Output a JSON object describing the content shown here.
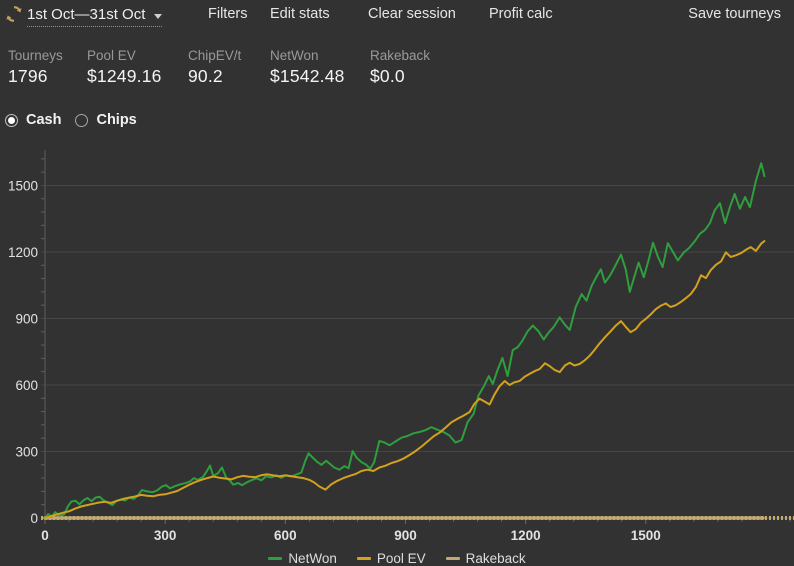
{
  "header": {
    "date_range": "1st Oct—31st Oct",
    "menu": [
      "Filters",
      "Edit stats",
      "Clear session",
      "Profit calc"
    ],
    "save_label": "Save tourneys",
    "refresh_icon": "refresh-circular-arrows",
    "accent_gold": "#c2a15a"
  },
  "stats": [
    {
      "label": "Tourneys",
      "value": "1796"
    },
    {
      "label": "Pool EV",
      "value": "$1249.16"
    },
    {
      "label": "ChipEV/t",
      "value": "90.2"
    },
    {
      "label": "NetWon",
      "value": "$1542.48"
    },
    {
      "label": "Rakeback",
      "value": "$0.0"
    }
  ],
  "mode_toggle": {
    "options": [
      {
        "label": "Cash",
        "selected": true
      },
      {
        "label": "Chips",
        "selected": false
      }
    ]
  },
  "colors": {
    "background": "#323232",
    "grid": "#464646",
    "axis": "#5f5f5f",
    "tick_text": "#e2e2e2",
    "netwon_green": "#2f9e3e",
    "poolev_gold": "#d4a11d",
    "rakeback_tan": "#c2a873"
  },
  "chart_data": {
    "type": "line",
    "title": "",
    "xlabel": "",
    "ylabel": "",
    "xlim": [
      0,
      1870
    ],
    "ylim": [
      0,
      1660
    ],
    "x_ticks": [
      0,
      300,
      600,
      900,
      1200,
      1500
    ],
    "y_ticks": [
      0,
      300,
      600,
      900,
      1200,
      1500
    ],
    "minor_tick_step": 60,
    "grid": "horizontal",
    "legend_position": "bottom",
    "series": [
      {
        "name": "NetWon",
        "color": "#2f9e3e",
        "width": 2,
        "points": [
          [
            0,
            0
          ],
          [
            8,
            18
          ],
          [
            16,
            6
          ],
          [
            26,
            26
          ],
          [
            36,
            10
          ],
          [
            48,
            16
          ],
          [
            58,
            55
          ],
          [
            66,
            74
          ],
          [
            76,
            78
          ],
          [
            86,
            62
          ],
          [
            96,
            80
          ],
          [
            106,
            90
          ],
          [
            116,
            76
          ],
          [
            126,
            92
          ],
          [
            136,
            96
          ],
          [
            146,
            80
          ],
          [
            156,
            70
          ],
          [
            168,
            58
          ],
          [
            178,
            76
          ],
          [
            190,
            83
          ],
          [
            200,
            79
          ],
          [
            210,
            92
          ],
          [
            222,
            86
          ],
          [
            232,
            102
          ],
          [
            242,
            126
          ],
          [
            255,
            120
          ],
          [
            268,
            116
          ],
          [
            280,
            124
          ],
          [
            292,
            142
          ],
          [
            302,
            148
          ],
          [
            312,
            134
          ],
          [
            325,
            144
          ],
          [
            338,
            152
          ],
          [
            350,
            157
          ],
          [
            362,
            165
          ],
          [
            372,
            180
          ],
          [
            382,
            172
          ],
          [
            395,
            186
          ],
          [
            405,
            214
          ],
          [
            412,
            237
          ],
          [
            420,
            190
          ],
          [
            432,
            202
          ],
          [
            442,
            228
          ],
          [
            452,
            184
          ],
          [
            462,
            168
          ],
          [
            470,
            150
          ],
          [
            482,
            158
          ],
          [
            492,
            148
          ],
          [
            505,
            162
          ],
          [
            515,
            170
          ],
          [
            528,
            180
          ],
          [
            540,
            170
          ],
          [
            552,
            188
          ],
          [
            565,
            183
          ],
          [
            578,
            192
          ],
          [
            590,
            181
          ],
          [
            602,
            193
          ],
          [
            615,
            187
          ],
          [
            628,
            196
          ],
          [
            640,
            205
          ],
          [
            650,
            258
          ],
          [
            658,
            292
          ],
          [
            668,
            273
          ],
          [
            680,
            252
          ],
          [
            690,
            240
          ],
          [
            702,
            258
          ],
          [
            712,
            243
          ],
          [
            722,
            228
          ],
          [
            735,
            218
          ],
          [
            748,
            234
          ],
          [
            758,
            224
          ],
          [
            768,
            302
          ],
          [
            778,
            272
          ],
          [
            790,
            252
          ],
          [
            802,
            240
          ],
          [
            812,
            222
          ],
          [
            822,
            252
          ],
          [
            835,
            348
          ],
          [
            848,
            340
          ],
          [
            860,
            328
          ],
          [
            875,
            345
          ],
          [
            890,
            362
          ],
          [
            905,
            370
          ],
          [
            920,
            382
          ],
          [
            935,
            388
          ],
          [
            950,
            396
          ],
          [
            965,
            410
          ],
          [
            980,
            398
          ],
          [
            995,
            388
          ],
          [
            1010,
            372
          ],
          [
            1025,
            340
          ],
          [
            1040,
            352
          ],
          [
            1055,
            432
          ],
          [
            1070,
            470
          ],
          [
            1082,
            552
          ],
          [
            1095,
            592
          ],
          [
            1108,
            640
          ],
          [
            1118,
            605
          ],
          [
            1130,
            668
          ],
          [
            1142,
            722
          ],
          [
            1155,
            640
          ],
          [
            1168,
            758
          ],
          [
            1180,
            770
          ],
          [
            1192,
            800
          ],
          [
            1205,
            842
          ],
          [
            1218,
            868
          ],
          [
            1232,
            842
          ],
          [
            1245,
            805
          ],
          [
            1258,
            838
          ],
          [
            1270,
            862
          ],
          [
            1285,
            905
          ],
          [
            1298,
            872
          ],
          [
            1310,
            848
          ],
          [
            1325,
            952
          ],
          [
            1340,
            1010
          ],
          [
            1352,
            980
          ],
          [
            1365,
            1048
          ],
          [
            1378,
            1092
          ],
          [
            1388,
            1122
          ],
          [
            1398,
            1062
          ],
          [
            1410,
            1092
          ],
          [
            1422,
            1132
          ],
          [
            1438,
            1188
          ],
          [
            1450,
            1120
          ],
          [
            1460,
            1020
          ],
          [
            1472,
            1092
          ],
          [
            1482,
            1152
          ],
          [
            1495,
            1086
          ],
          [
            1508,
            1170
          ],
          [
            1518,
            1242
          ],
          [
            1530,
            1180
          ],
          [
            1542,
            1132
          ],
          [
            1555,
            1240
          ],
          [
            1568,
            1200
          ],
          [
            1580,
            1162
          ],
          [
            1595,
            1198
          ],
          [
            1608,
            1218
          ],
          [
            1622,
            1248
          ],
          [
            1635,
            1282
          ],
          [
            1648,
            1300
          ],
          [
            1660,
            1330
          ],
          [
            1672,
            1388
          ],
          [
            1685,
            1420
          ],
          [
            1698,
            1330
          ],
          [
            1710,
            1402
          ],
          [
            1722,
            1462
          ],
          [
            1735,
            1395
          ],
          [
            1748,
            1448
          ],
          [
            1760,
            1402
          ],
          [
            1775,
            1520
          ],
          [
            1788,
            1600
          ],
          [
            1792,
            1572
          ],
          [
            1796,
            1542
          ]
        ]
      },
      {
        "name": "Pool EV",
        "color": "#d4a11d",
        "width": 2,
        "points": [
          [
            0,
            0
          ],
          [
            15,
            8
          ],
          [
            30,
            16
          ],
          [
            45,
            24
          ],
          [
            60,
            30
          ],
          [
            75,
            42
          ],
          [
            90,
            52
          ],
          [
            105,
            58
          ],
          [
            120,
            64
          ],
          [
            135,
            70
          ],
          [
            150,
            73
          ],
          [
            165,
            68
          ],
          [
            180,
            78
          ],
          [
            195,
            86
          ],
          [
            210,
            92
          ],
          [
            225,
            97
          ],
          [
            240,
            104
          ],
          [
            255,
            100
          ],
          [
            270,
            98
          ],
          [
            285,
            104
          ],
          [
            300,
            107
          ],
          [
            315,
            114
          ],
          [
            330,
            122
          ],
          [
            345,
            136
          ],
          [
            360,
            150
          ],
          [
            375,
            162
          ],
          [
            390,
            172
          ],
          [
            405,
            180
          ],
          [
            420,
            187
          ],
          [
            435,
            182
          ],
          [
            450,
            178
          ],
          [
            465,
            174
          ],
          [
            480,
            184
          ],
          [
            495,
            190
          ],
          [
            510,
            186
          ],
          [
            525,
            184
          ],
          [
            540,
            193
          ],
          [
            555,
            197
          ],
          [
            570,
            192
          ],
          [
            585,
            188
          ],
          [
            600,
            192
          ],
          [
            615,
            188
          ],
          [
            630,
            184
          ],
          [
            645,
            180
          ],
          [
            660,
            172
          ],
          [
            672,
            160
          ],
          [
            685,
            142
          ],
          [
            700,
            128
          ],
          [
            715,
            152
          ],
          [
            730,
            168
          ],
          [
            745,
            180
          ],
          [
            760,
            190
          ],
          [
            775,
            198
          ],
          [
            790,
            212
          ],
          [
            805,
            218
          ],
          [
            820,
            212
          ],
          [
            835,
            228
          ],
          [
            850,
            236
          ],
          [
            865,
            248
          ],
          [
            880,
            256
          ],
          [
            895,
            268
          ],
          [
            910,
            284
          ],
          [
            925,
            302
          ],
          [
            940,
            322
          ],
          [
            955,
            345
          ],
          [
            970,
            368
          ],
          [
            985,
            385
          ],
          [
            1000,
            408
          ],
          [
            1015,
            432
          ],
          [
            1030,
            448
          ],
          [
            1045,
            462
          ],
          [
            1060,
            478
          ],
          [
            1072,
            515
          ],
          [
            1085,
            538
          ],
          [
            1098,
            525
          ],
          [
            1110,
            512
          ],
          [
            1122,
            556
          ],
          [
            1135,
            595
          ],
          [
            1148,
            618
          ],
          [
            1160,
            600
          ],
          [
            1172,
            612
          ],
          [
            1185,
            618
          ],
          [
            1198,
            638
          ],
          [
            1210,
            650
          ],
          [
            1222,
            662
          ],
          [
            1235,
            672
          ],
          [
            1248,
            698
          ],
          [
            1260,
            685
          ],
          [
            1272,
            668
          ],
          [
            1285,
            658
          ],
          [
            1298,
            688
          ],
          [
            1310,
            700
          ],
          [
            1322,
            688
          ],
          [
            1335,
            695
          ],
          [
            1348,
            712
          ],
          [
            1360,
            732
          ],
          [
            1372,
            758
          ],
          [
            1385,
            788
          ],
          [
            1398,
            815
          ],
          [
            1410,
            838
          ],
          [
            1425,
            868
          ],
          [
            1438,
            888
          ],
          [
            1450,
            862
          ],
          [
            1462,
            838
          ],
          [
            1475,
            852
          ],
          [
            1488,
            882
          ],
          [
            1500,
            898
          ],
          [
            1512,
            918
          ],
          [
            1525,
            942
          ],
          [
            1538,
            958
          ],
          [
            1550,
            968
          ],
          [
            1562,
            952
          ],
          [
            1575,
            960
          ],
          [
            1588,
            975
          ],
          [
            1600,
            992
          ],
          [
            1612,
            1010
          ],
          [
            1625,
            1042
          ],
          [
            1638,
            1095
          ],
          [
            1650,
            1082
          ],
          [
            1662,
            1118
          ],
          [
            1675,
            1142
          ],
          [
            1688,
            1158
          ],
          [
            1700,
            1198
          ],
          [
            1712,
            1178
          ],
          [
            1725,
            1185
          ],
          [
            1738,
            1195
          ],
          [
            1750,
            1210
          ],
          [
            1762,
            1222
          ],
          [
            1775,
            1205
          ],
          [
            1788,
            1238
          ],
          [
            1796,
            1249
          ]
        ]
      },
      {
        "name": "Rakeback",
        "color": "#c2a873",
        "width": 3.5,
        "points": [
          [
            0,
            0
          ],
          [
            1796,
            0
          ]
        ]
      }
    ]
  }
}
